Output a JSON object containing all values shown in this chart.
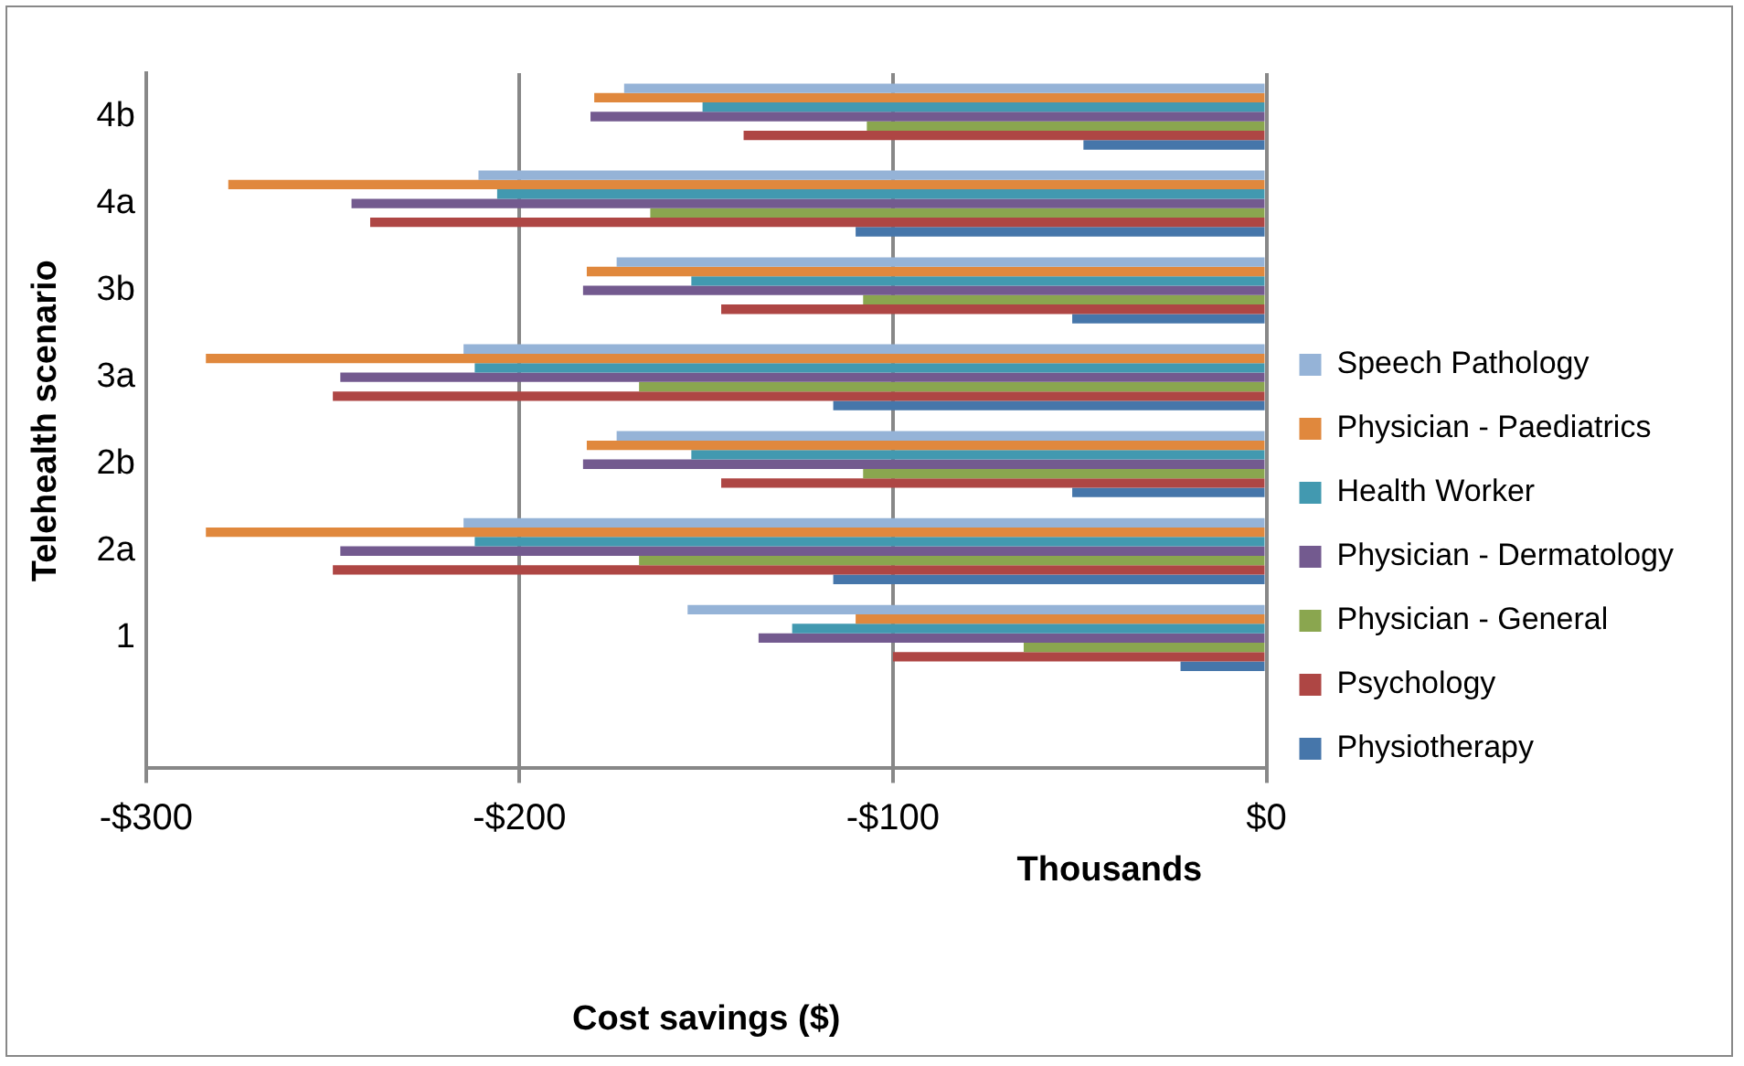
{
  "chart_data": {
    "type": "bar",
    "orientation": "horizontal",
    "xlabel": "Cost savings ($)",
    "ylabel": "Telehealth scenario",
    "annotations": [
      "Thousands"
    ],
    "categories": [
      "4b",
      "4a",
      "3b",
      "3a",
      "2b",
      "2a",
      "1",
      null
    ],
    "series": [
      {
        "name": "Speech Pathology",
        "color": "#95b3d7",
        "values": [
          -172,
          -211,
          -174,
          -215,
          -174,
          -215,
          -155,
          null
        ]
      },
      {
        "name": "Physician - Paediatrics",
        "color": "#e0883d",
        "values": [
          -180,
          -278,
          -182,
          -284,
          -182,
          -284,
          -110,
          null
        ]
      },
      {
        "name": "Health Worker",
        "color": "#4299b0",
        "values": [
          -151,
          -206,
          -154,
          -212,
          -154,
          -212,
          -127,
          null
        ]
      },
      {
        "name": "Physician - Dermatology",
        "color": "#735a8f",
        "values": [
          -181,
          -245,
          -183,
          -248,
          -183,
          -248,
          -136,
          null
        ]
      },
      {
        "name": "Physician - General",
        "color": "#8aa64f",
        "values": [
          -107,
          -165,
          -108,
          -168,
          -108,
          -168,
          -65,
          null
        ]
      },
      {
        "name": "Psychology",
        "color": "#ae4644",
        "values": [
          -140,
          -240,
          -146,
          -250,
          -146,
          -250,
          -100,
          null
        ]
      },
      {
        "name": "Physiotherapy",
        "color": "#4676aa",
        "values": [
          -49,
          -110,
          -52,
          -116,
          -52,
          -116,
          -23,
          null
        ]
      }
    ],
    "xlim": [
      -300,
      0
    ],
    "xticks": [
      {
        "value": -300,
        "label": "-$300"
      },
      {
        "value": -200,
        "label": "-$200"
      },
      {
        "value": -100,
        "label": "-$100"
      },
      {
        "value": 0,
        "label": "$0"
      }
    ],
    "grid": "x",
    "legend": "right"
  }
}
